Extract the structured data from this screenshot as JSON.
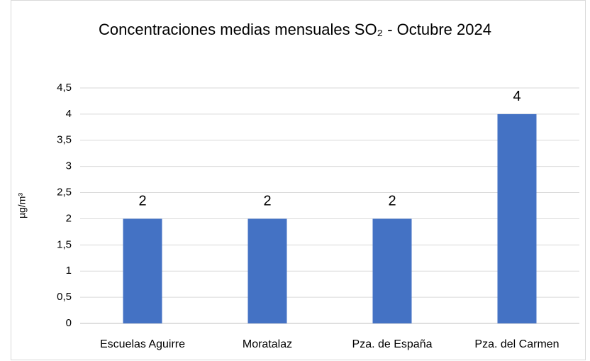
{
  "chart_data": {
    "type": "bar",
    "title": "Concentraciones medias mensuales SO₂ - Octubre 2024",
    "y_label": "µg/m³",
    "categories": [
      "Escuelas Aguirre",
      "Moratalaz",
      "Pza. de España",
      "Pza. del Carmen"
    ],
    "values": [
      2,
      2,
      2,
      4
    ],
    "color": "#4472c4",
    "ylim": [
      0,
      4.5
    ],
    "yticks": [
      0,
      {
        "value": 0.5,
        "label": "0,5"
      },
      1,
      {
        "value": 1.5,
        "label": "1,5"
      },
      2,
      {
        "value": 2.5,
        "label": "2,5"
      },
      3,
      {
        "value": 3.5,
        "label": "3,5"
      },
      4,
      {
        "value": 4.5,
        "label": "4,5"
      }
    ],
    "grid": true
  }
}
